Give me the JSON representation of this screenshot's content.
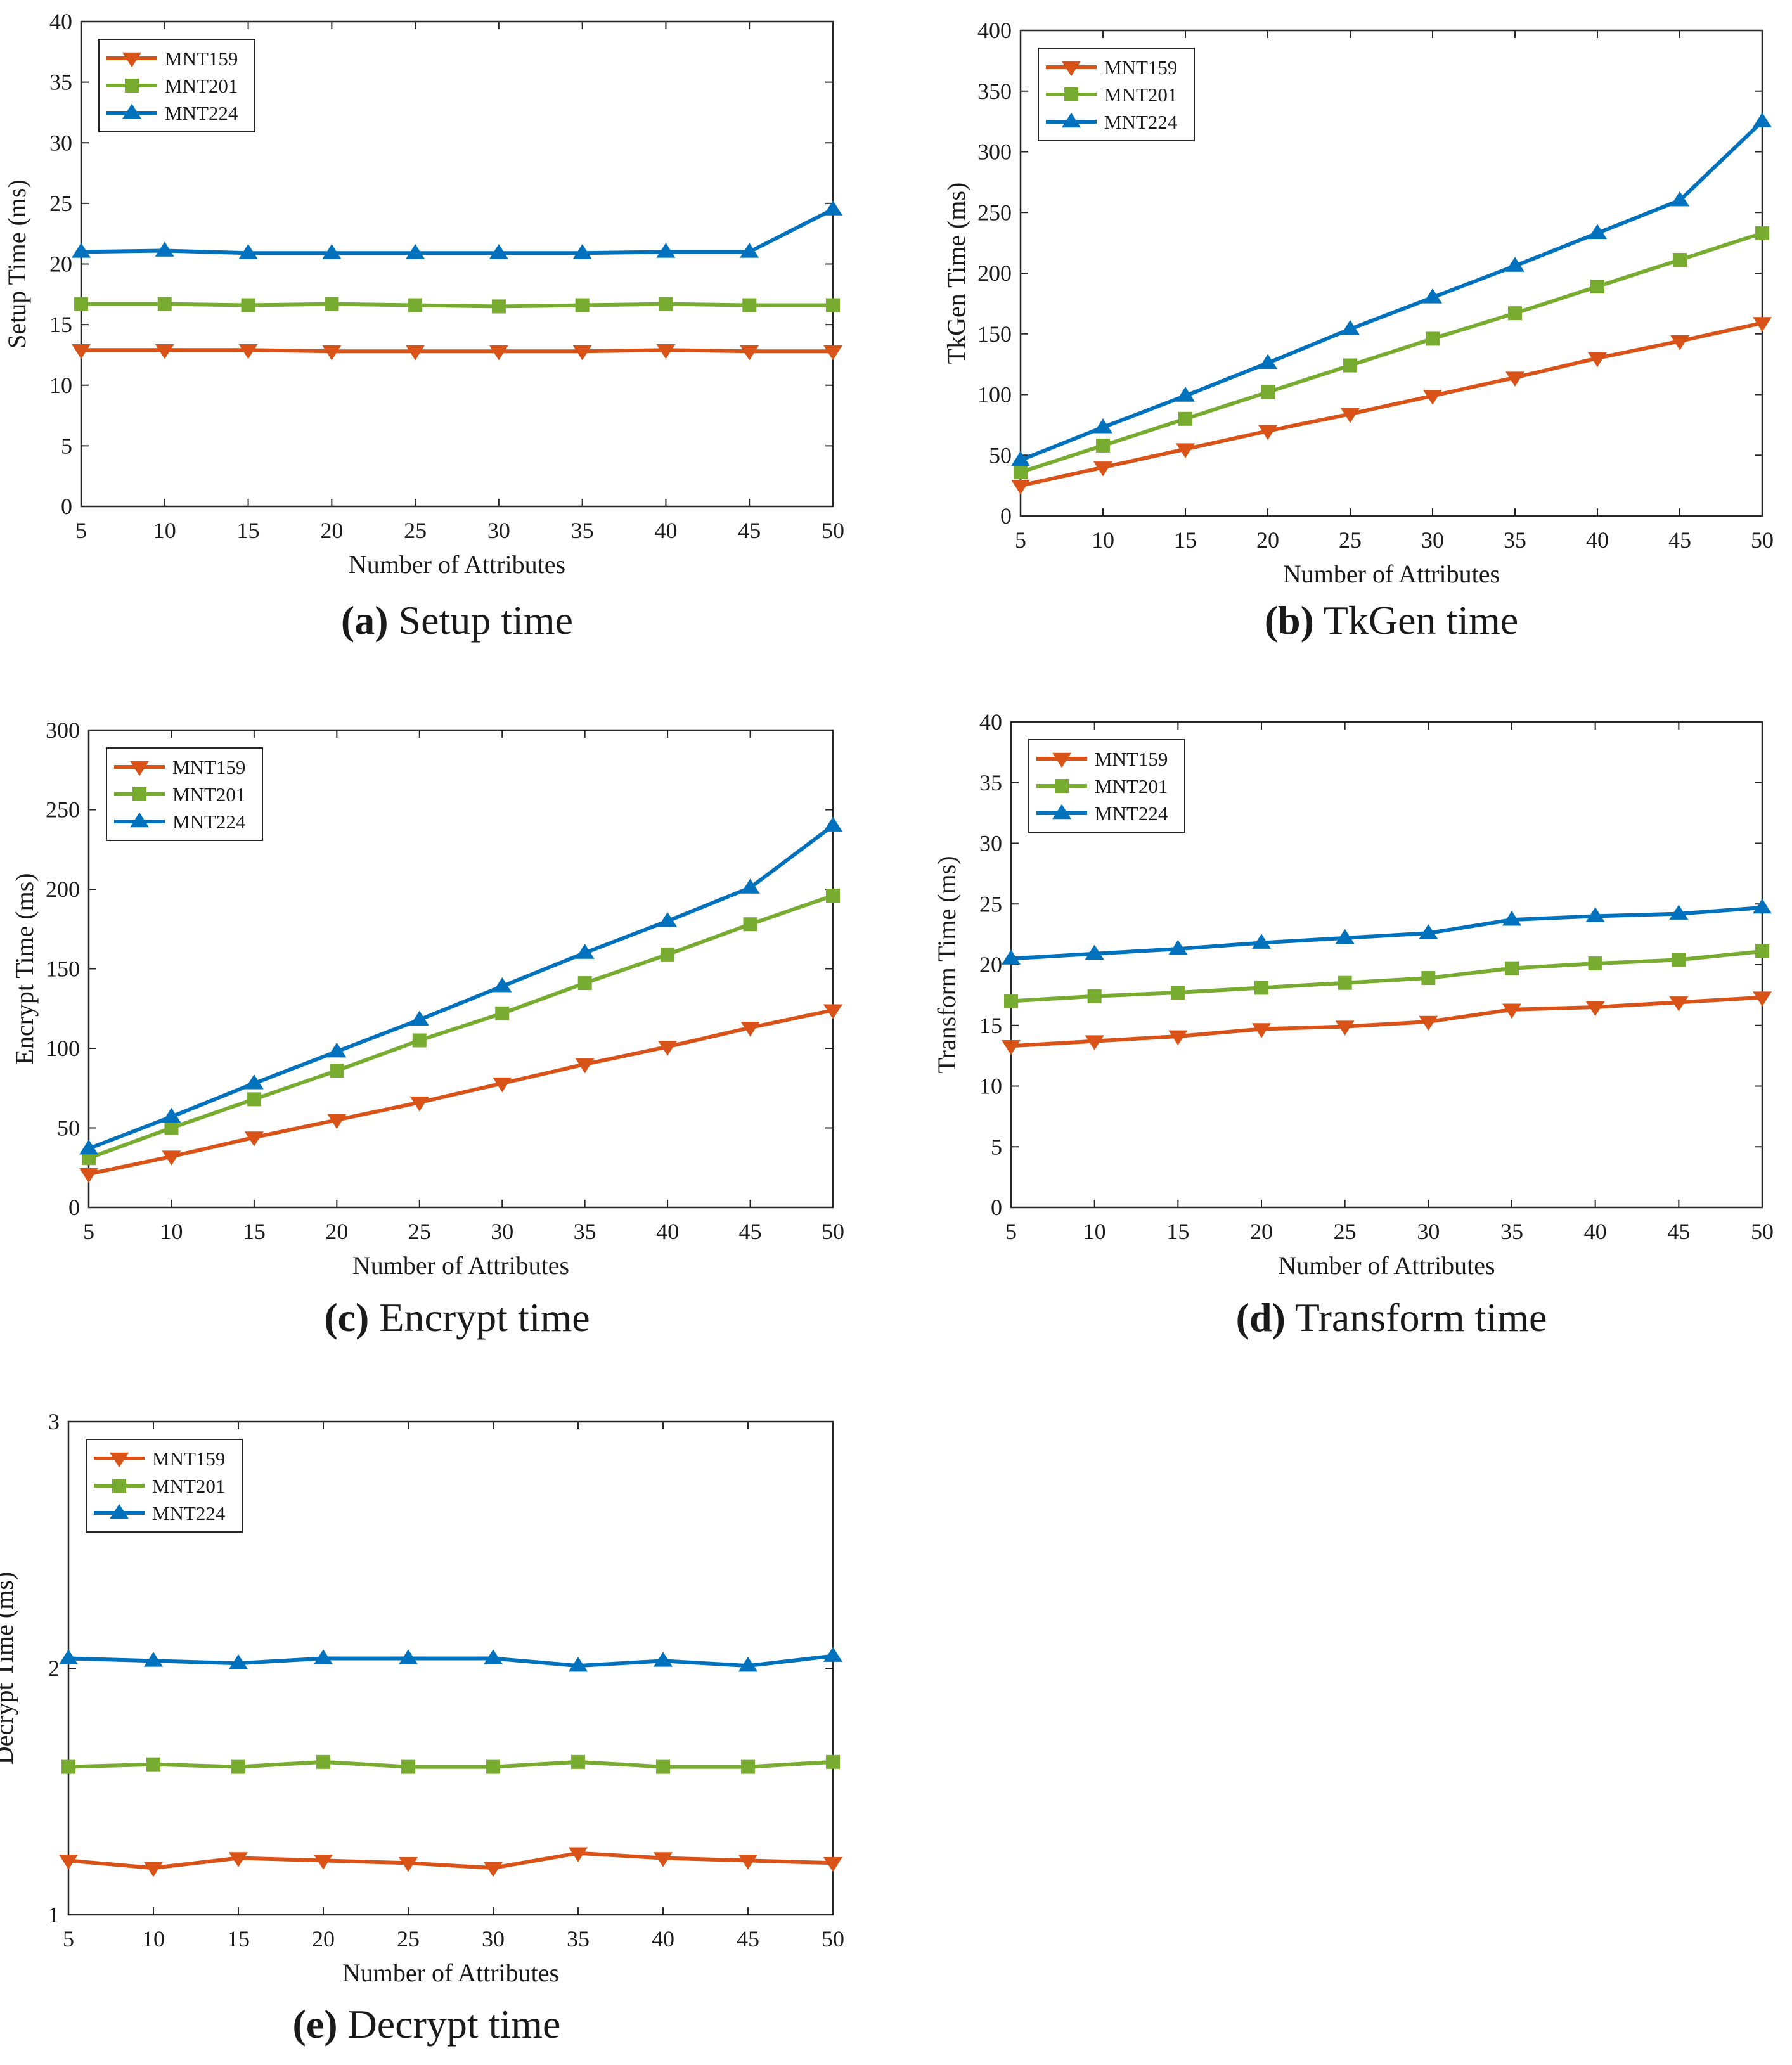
{
  "colors": {
    "MNT159": "#D95319",
    "MNT201": "#77AC30",
    "MNT224": "#0072BD"
  },
  "chart_data": [
    {
      "id": "a",
      "type": "line",
      "caption_letter": "(a)",
      "caption_text": "Setup time",
      "xlabel": "Number of Attributes",
      "ylabel": "Setup Time (ms)",
      "x": [
        5,
        10,
        15,
        20,
        25,
        30,
        35,
        40,
        45,
        50
      ],
      "xlim": [
        5,
        50
      ],
      "ylim": [
        0,
        40
      ],
      "yticks": [
        0,
        5,
        10,
        15,
        20,
        25,
        30,
        35,
        40
      ],
      "legend": "top-left",
      "series": [
        {
          "name": "MNT159",
          "marker": "triangle-down",
          "values": [
            12.9,
            12.9,
            12.9,
            12.8,
            12.8,
            12.8,
            12.8,
            12.9,
            12.8,
            12.8
          ]
        },
        {
          "name": "MNT201",
          "marker": "square",
          "values": [
            16.7,
            16.7,
            16.6,
            16.7,
            16.6,
            16.5,
            16.6,
            16.7,
            16.6,
            16.6
          ]
        },
        {
          "name": "MNT224",
          "marker": "triangle-up",
          "values": [
            21.0,
            21.1,
            20.9,
            20.9,
            20.9,
            20.9,
            20.9,
            21.0,
            21.0,
            24.5
          ]
        }
      ]
    },
    {
      "id": "b",
      "type": "line",
      "caption_letter": "(b)",
      "caption_text": "TkGen time",
      "xlabel": "Number of Attributes",
      "ylabel": "TkGen Time (ms)",
      "x": [
        5,
        10,
        15,
        20,
        25,
        30,
        35,
        40,
        45,
        50
      ],
      "xlim": [
        5,
        50
      ],
      "ylim": [
        0,
        400
      ],
      "yticks": [
        0,
        50,
        100,
        150,
        200,
        250,
        300,
        350,
        400
      ],
      "legend": "top-left",
      "series": [
        {
          "name": "MNT159",
          "marker": "triangle-down",
          "values": [
            25,
            40,
            55,
            70,
            84,
            99,
            114,
            130,
            144,
            159
          ]
        },
        {
          "name": "MNT201",
          "marker": "square",
          "values": [
            36,
            58,
            80,
            102,
            124,
            146,
            167,
            189,
            211,
            233
          ]
        },
        {
          "name": "MNT224",
          "marker": "triangle-up",
          "values": [
            46,
            73,
            99,
            126,
            154,
            180,
            206,
            233,
            260,
            325
          ]
        }
      ]
    },
    {
      "id": "c",
      "type": "line",
      "caption_letter": "(c)",
      "caption_text": "Encrypt time",
      "xlabel": "Number of Attributes",
      "ylabel": "Encrypt Time (ms)",
      "x": [
        5,
        10,
        15,
        20,
        25,
        30,
        35,
        40,
        45,
        50
      ],
      "xlim": [
        5,
        50
      ],
      "ylim": [
        0,
        300
      ],
      "yticks": [
        0,
        50,
        100,
        150,
        200,
        250,
        300
      ],
      "legend": "top-left",
      "series": [
        {
          "name": "MNT159",
          "marker": "triangle-down",
          "values": [
            21,
            32,
            44,
            55,
            66,
            78,
            90,
            101,
            113,
            124
          ]
        },
        {
          "name": "MNT201",
          "marker": "square",
          "values": [
            31,
            50,
            68,
            86,
            105,
            122,
            141,
            159,
            178,
            196
          ]
        },
        {
          "name": "MNT224",
          "marker": "triangle-up",
          "values": [
            37,
            57,
            78,
            98,
            118,
            139,
            160,
            180,
            201,
            240
          ]
        }
      ]
    },
    {
      "id": "d",
      "type": "line",
      "caption_letter": "(d)",
      "caption_text": "Transform time",
      "xlabel": "Number of Attributes",
      "ylabel": "Transform Time (ms)",
      "x": [
        5,
        10,
        15,
        20,
        25,
        30,
        35,
        40,
        45,
        50
      ],
      "xlim": [
        5,
        50
      ],
      "ylim": [
        0,
        40
      ],
      "yticks": [
        0,
        5,
        10,
        15,
        20,
        25,
        30,
        35,
        40
      ],
      "legend": "top-left",
      "series": [
        {
          "name": "MNT159",
          "marker": "triangle-down",
          "values": [
            13.3,
            13.7,
            14.1,
            14.7,
            14.9,
            15.3,
            16.3,
            16.5,
            16.9,
            17.3
          ]
        },
        {
          "name": "MNT201",
          "marker": "square",
          "values": [
            17.0,
            17.4,
            17.7,
            18.1,
            18.5,
            18.9,
            19.7,
            20.1,
            20.4,
            21.1
          ]
        },
        {
          "name": "MNT224",
          "marker": "triangle-up",
          "values": [
            20.5,
            20.9,
            21.3,
            21.8,
            22.2,
            22.6,
            23.7,
            24.0,
            24.2,
            24.7
          ]
        }
      ]
    },
    {
      "id": "e",
      "type": "line",
      "caption_letter": "(e)",
      "caption_text": "Decrypt time",
      "xlabel": "Number of Attributes",
      "ylabel": "Decrypt Time (ms)",
      "x": [
        5,
        10,
        15,
        20,
        25,
        30,
        35,
        40,
        45,
        50
      ],
      "xlim": [
        5,
        50
      ],
      "ylim": [
        1,
        3
      ],
      "yticks": [
        1,
        2,
        3
      ],
      "legend": "top-left",
      "series": [
        {
          "name": "MNT159",
          "marker": "triangle-down",
          "values": [
            1.22,
            1.19,
            1.23,
            1.22,
            1.21,
            1.19,
            1.25,
            1.23,
            1.22,
            1.21
          ]
        },
        {
          "name": "MNT201",
          "marker": "square",
          "values": [
            1.6,
            1.61,
            1.6,
            1.62,
            1.6,
            1.6,
            1.62,
            1.6,
            1.6,
            1.62
          ]
        },
        {
          "name": "MNT224",
          "marker": "triangle-up",
          "values": [
            2.04,
            2.03,
            2.02,
            2.04,
            2.04,
            2.04,
            2.01,
            2.03,
            2.01,
            2.05
          ]
        }
      ]
    }
  ]
}
